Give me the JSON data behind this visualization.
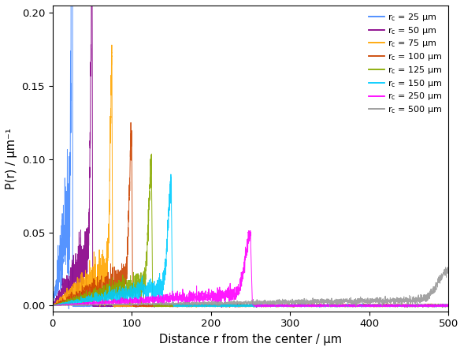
{
  "title": "",
  "xlabel": "Distance r from the center / μm",
  "ylabel": "P(r) / μm⁻¹",
  "xlim": [
    0,
    500
  ],
  "ylim": [
    -0.004,
    0.205
  ],
  "series": [
    {
      "rc": 25,
      "color": "#4488FF",
      "label": "r_c = 25 μm"
    },
    {
      "rc": 50,
      "color": "#880088",
      "label": "r_c = 50 μm"
    },
    {
      "rc": 75,
      "color": "#FFA500",
      "label": "r_c = 75 μm"
    },
    {
      "rc": 100,
      "color": "#CC4400",
      "label": "r_c = 100 μm"
    },
    {
      "rc": 125,
      "color": "#88AA00",
      "label": "r_c = 125 μm"
    },
    {
      "rc": 150,
      "color": "#00CCFF",
      "label": "r_c = 150 μm"
    },
    {
      "rc": 250,
      "color": "#FF00FF",
      "label": "r_c = 250 μm"
    },
    {
      "rc": 500,
      "color": "#999999",
      "label": "r_c = 500 μm"
    }
  ],
  "yticks": [
    0.0,
    0.05,
    0.1,
    0.15,
    0.2
  ],
  "xticks": [
    0,
    100,
    200,
    300,
    400,
    500
  ]
}
